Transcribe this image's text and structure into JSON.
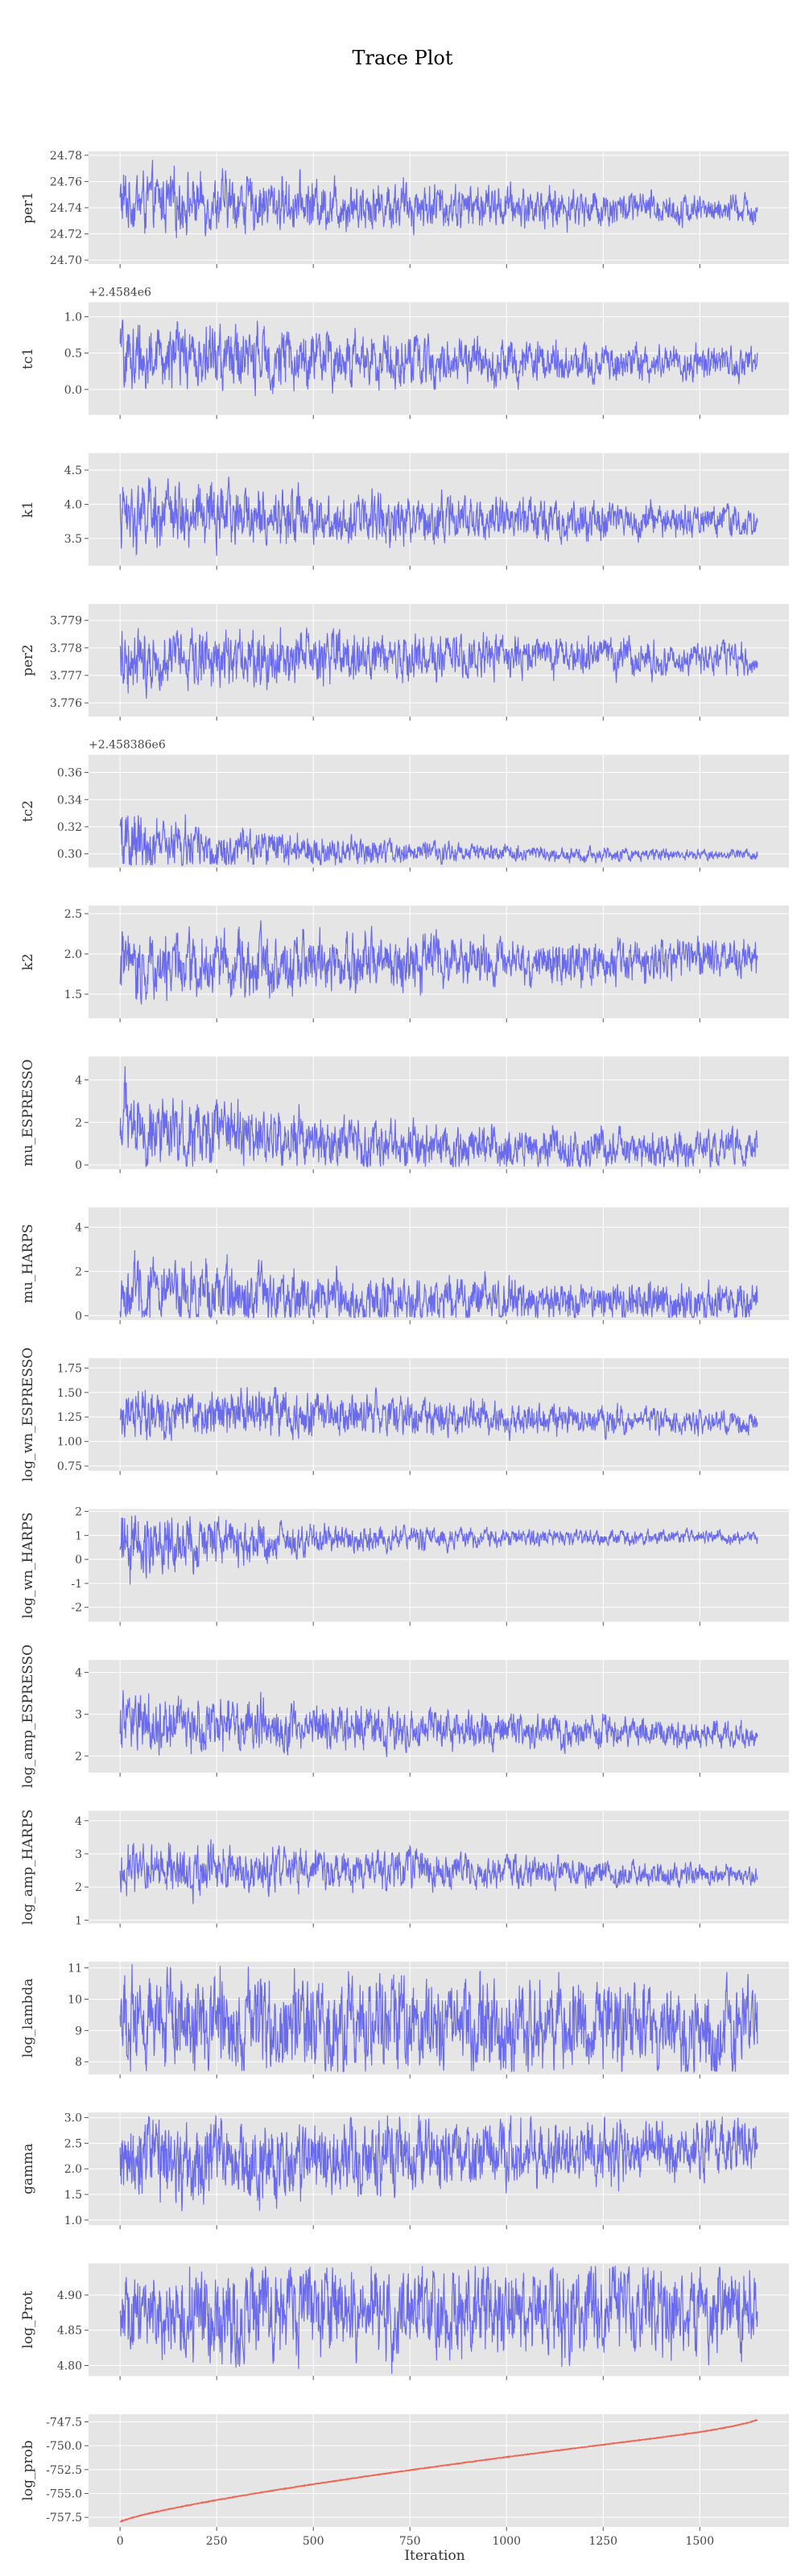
{
  "chart_data": {
    "type": "line",
    "title": "Trace Plot",
    "xlabel": "Iteration",
    "x_range": [
      0,
      1649
    ],
    "x_ticks": [
      "0",
      "250",
      "500",
      "750",
      "1000",
      "1250",
      "1500"
    ],
    "x_tick_values": [
      0,
      250,
      500,
      750,
      1000,
      1250,
      1500
    ],
    "grid": true,
    "panels": [
      {
        "ylabel": "per1",
        "color": "#5555ee",
        "ylim": [
          24.697,
          24.783
        ],
        "ticks": [
          "24.70",
          "24.72",
          "24.74",
          "24.76",
          "24.78"
        ],
        "tick_values": [
          24.7,
          24.72,
          24.74,
          24.76,
          24.78
        ],
        "offset": "",
        "series": {
          "start_center": 24.745,
          "end_center": 24.738,
          "start_amp": 0.022,
          "end_amp": 0.01,
          "trend": "flat"
        }
      },
      {
        "ylabel": "tc1",
        "color": "#5555ee",
        "ylim": [
          -0.35,
          1.2
        ],
        "ticks": [
          "0.0",
          "0.5",
          "1.0"
        ],
        "tick_values": [
          0.0,
          0.5,
          1.0
        ],
        "offset": "+2.4584e6",
        "series": {
          "start_center": 0.45,
          "end_center": 0.35,
          "start_amp": 0.45,
          "end_amp": 0.18,
          "trend": "flat"
        }
      },
      {
        "ylabel": "k1",
        "color": "#5555ee",
        "ylim": [
          3.1,
          4.75
        ],
        "ticks": [
          "3.5",
          "4.0",
          "4.5"
        ],
        "tick_values": [
          3.5,
          4.0,
          4.5
        ],
        "offset": "",
        "series": {
          "start_center": 3.85,
          "end_center": 3.75,
          "start_amp": 0.45,
          "end_amp": 0.2,
          "trend": "flat"
        }
      },
      {
        "ylabel": "per2",
        "color": "#5555ee",
        "ylim": [
          3.7755,
          3.7796
        ],
        "ticks": [
          "3.776",
          "3.777",
          "3.778",
          "3.779"
        ],
        "tick_values": [
          3.776,
          3.777,
          3.778,
          3.779
        ],
        "offset": "",
        "series": {
          "start_center": 3.7777,
          "end_center": 3.7776,
          "start_amp": 0.0011,
          "end_amp": 0.0005,
          "trend": "flat"
        }
      },
      {
        "ylabel": "tc2",
        "color": "#5555ee",
        "ylim": [
          0.29,
          0.373
        ],
        "ticks": [
          "0.30",
          "0.32",
          "0.34",
          "0.36"
        ],
        "tick_values": [
          0.3,
          0.32,
          0.34,
          0.36
        ],
        "offset": "+2.458386e6",
        "series": {
          "start_center": 0.307,
          "end_center": 0.299,
          "start_amp": 0.022,
          "end_amp": 0.003,
          "trend": "decay"
        }
      },
      {
        "ylabel": "k2",
        "color": "#5555ee",
        "ylim": [
          1.2,
          2.6
        ],
        "ticks": [
          "1.5",
          "2.0",
          "2.5"
        ],
        "tick_values": [
          1.5,
          2.0,
          2.5
        ],
        "offset": "",
        "series": {
          "start_center": 1.85,
          "end_center": 1.95,
          "start_amp": 0.4,
          "end_amp": 0.2,
          "trend": "flat"
        }
      },
      {
        "ylabel": "mu_ESPRESSO",
        "color": "#5555ee",
        "ylim": [
          -0.2,
          5.1
        ],
        "ticks": [
          "0",
          "2",
          "4"
        ],
        "tick_values": [
          0,
          2,
          4
        ],
        "offset": "",
        "series": {
          "start_center": 1.9,
          "end_center": 0.6,
          "start_amp": 1.8,
          "end_amp": 0.8,
          "trend": "decay"
        }
      },
      {
        "ylabel": "mu_HARPS",
        "color": "#5555ee",
        "ylim": [
          -0.2,
          4.9
        ],
        "ticks": [
          "0",
          "2",
          "4"
        ],
        "tick_values": [
          0,
          2,
          4
        ],
        "offset": "",
        "series": {
          "start_center": 1.2,
          "end_center": 0.5,
          "start_amp": 1.6,
          "end_amp": 0.8,
          "trend": "decay"
        }
      },
      {
        "ylabel": "log_wn_ESPRESSO",
        "color": "#5555ee",
        "ylim": [
          0.7,
          1.85
        ],
        "ticks": [
          "0.75",
          "1.00",
          "1.25",
          "1.50",
          "1.75"
        ],
        "tick_values": [
          0.75,
          1.0,
          1.25,
          1.5,
          1.75
        ],
        "offset": "",
        "series": {
          "start_center": 1.32,
          "end_center": 1.18,
          "start_amp": 0.25,
          "end_amp": 0.1,
          "trend": "flat"
        }
      },
      {
        "ylabel": "log_wn_HARPS",
        "color": "#5555ee",
        "ylim": [
          -2.6,
          2.1
        ],
        "ticks": [
          "-2",
          "-1",
          "0",
          "1",
          "2"
        ],
        "tick_values": [
          -2,
          -1,
          0,
          1,
          2
        ],
        "offset": "",
        "series": {
          "start_center": 0.5,
          "end_center": 0.95,
          "start_amp": 1.3,
          "end_amp": 0.2,
          "trend": "decay"
        }
      },
      {
        "ylabel": "log_amp_ESPRESSO",
        "color": "#5555ee",
        "ylim": [
          1.6,
          4.3
        ],
        "ticks": [
          "2",
          "3",
          "4"
        ],
        "tick_values": [
          2,
          3,
          4
        ],
        "offset": "",
        "series": {
          "start_center": 2.8,
          "end_center": 2.5,
          "start_amp": 0.65,
          "end_amp": 0.25,
          "trend": "flat"
        }
      },
      {
        "ylabel": "log_amp_HARPS",
        "color": "#5555ee",
        "ylim": [
          0.9,
          4.3
        ],
        "ticks": [
          "1",
          "2",
          "3",
          "4"
        ],
        "tick_values": [
          1,
          2,
          3,
          4
        ],
        "offset": "",
        "series": {
          "start_center": 2.6,
          "end_center": 2.35,
          "start_amp": 0.75,
          "end_amp": 0.25,
          "trend": "flat"
        }
      },
      {
        "ylabel": "log_lambda",
        "color": "#5555ee",
        "ylim": [
          7.6,
          11.2
        ],
        "ticks": [
          "8",
          "9",
          "10",
          "11"
        ],
        "tick_values": [
          8,
          9,
          10,
          11
        ],
        "offset": "",
        "series": {
          "start_center": 9.3,
          "end_center": 9.1,
          "start_amp": 1.5,
          "end_amp": 1.3,
          "trend": "flat"
        }
      },
      {
        "ylabel": "gamma",
        "color": "#5555ee",
        "ylim": [
          0.9,
          3.1
        ],
        "ticks": [
          "1.0",
          "1.5",
          "2.0",
          "2.5",
          "3.0"
        ],
        "tick_values": [
          1.0,
          1.5,
          2.0,
          2.5,
          3.0
        ],
        "offset": "",
        "series": {
          "start_center": 2.1,
          "end_center": 2.45,
          "start_amp": 0.8,
          "end_amp": 0.5,
          "trend": "bounded"
        }
      },
      {
        "ylabel": "log_Prot",
        "color": "#5555ee",
        "ylim": [
          4.785,
          4.945
        ],
        "ticks": [
          "4.80",
          "4.85",
          "4.90"
        ],
        "tick_values": [
          4.8,
          4.85,
          4.9
        ],
        "offset": "",
        "series": {
          "start_center": 4.87,
          "end_center": 4.88,
          "start_amp": 0.06,
          "end_amp": 0.06,
          "trend": "bounded"
        }
      },
      {
        "ylabel": "log_prob",
        "color": "#ee6655",
        "ylim": [
          -758.5,
          -746.7
        ],
        "ticks": [
          "-757.5",
          "-755.0",
          "-752.5",
          "-750.0",
          "-747.5"
        ],
        "tick_values": [
          -757.5,
          -755.0,
          -752.5,
          -750.0,
          -747.5
        ],
        "offset": "",
        "series": {
          "start_value": -758.0,
          "end_value": -747.3,
          "trend": "monotonic"
        }
      }
    ]
  }
}
